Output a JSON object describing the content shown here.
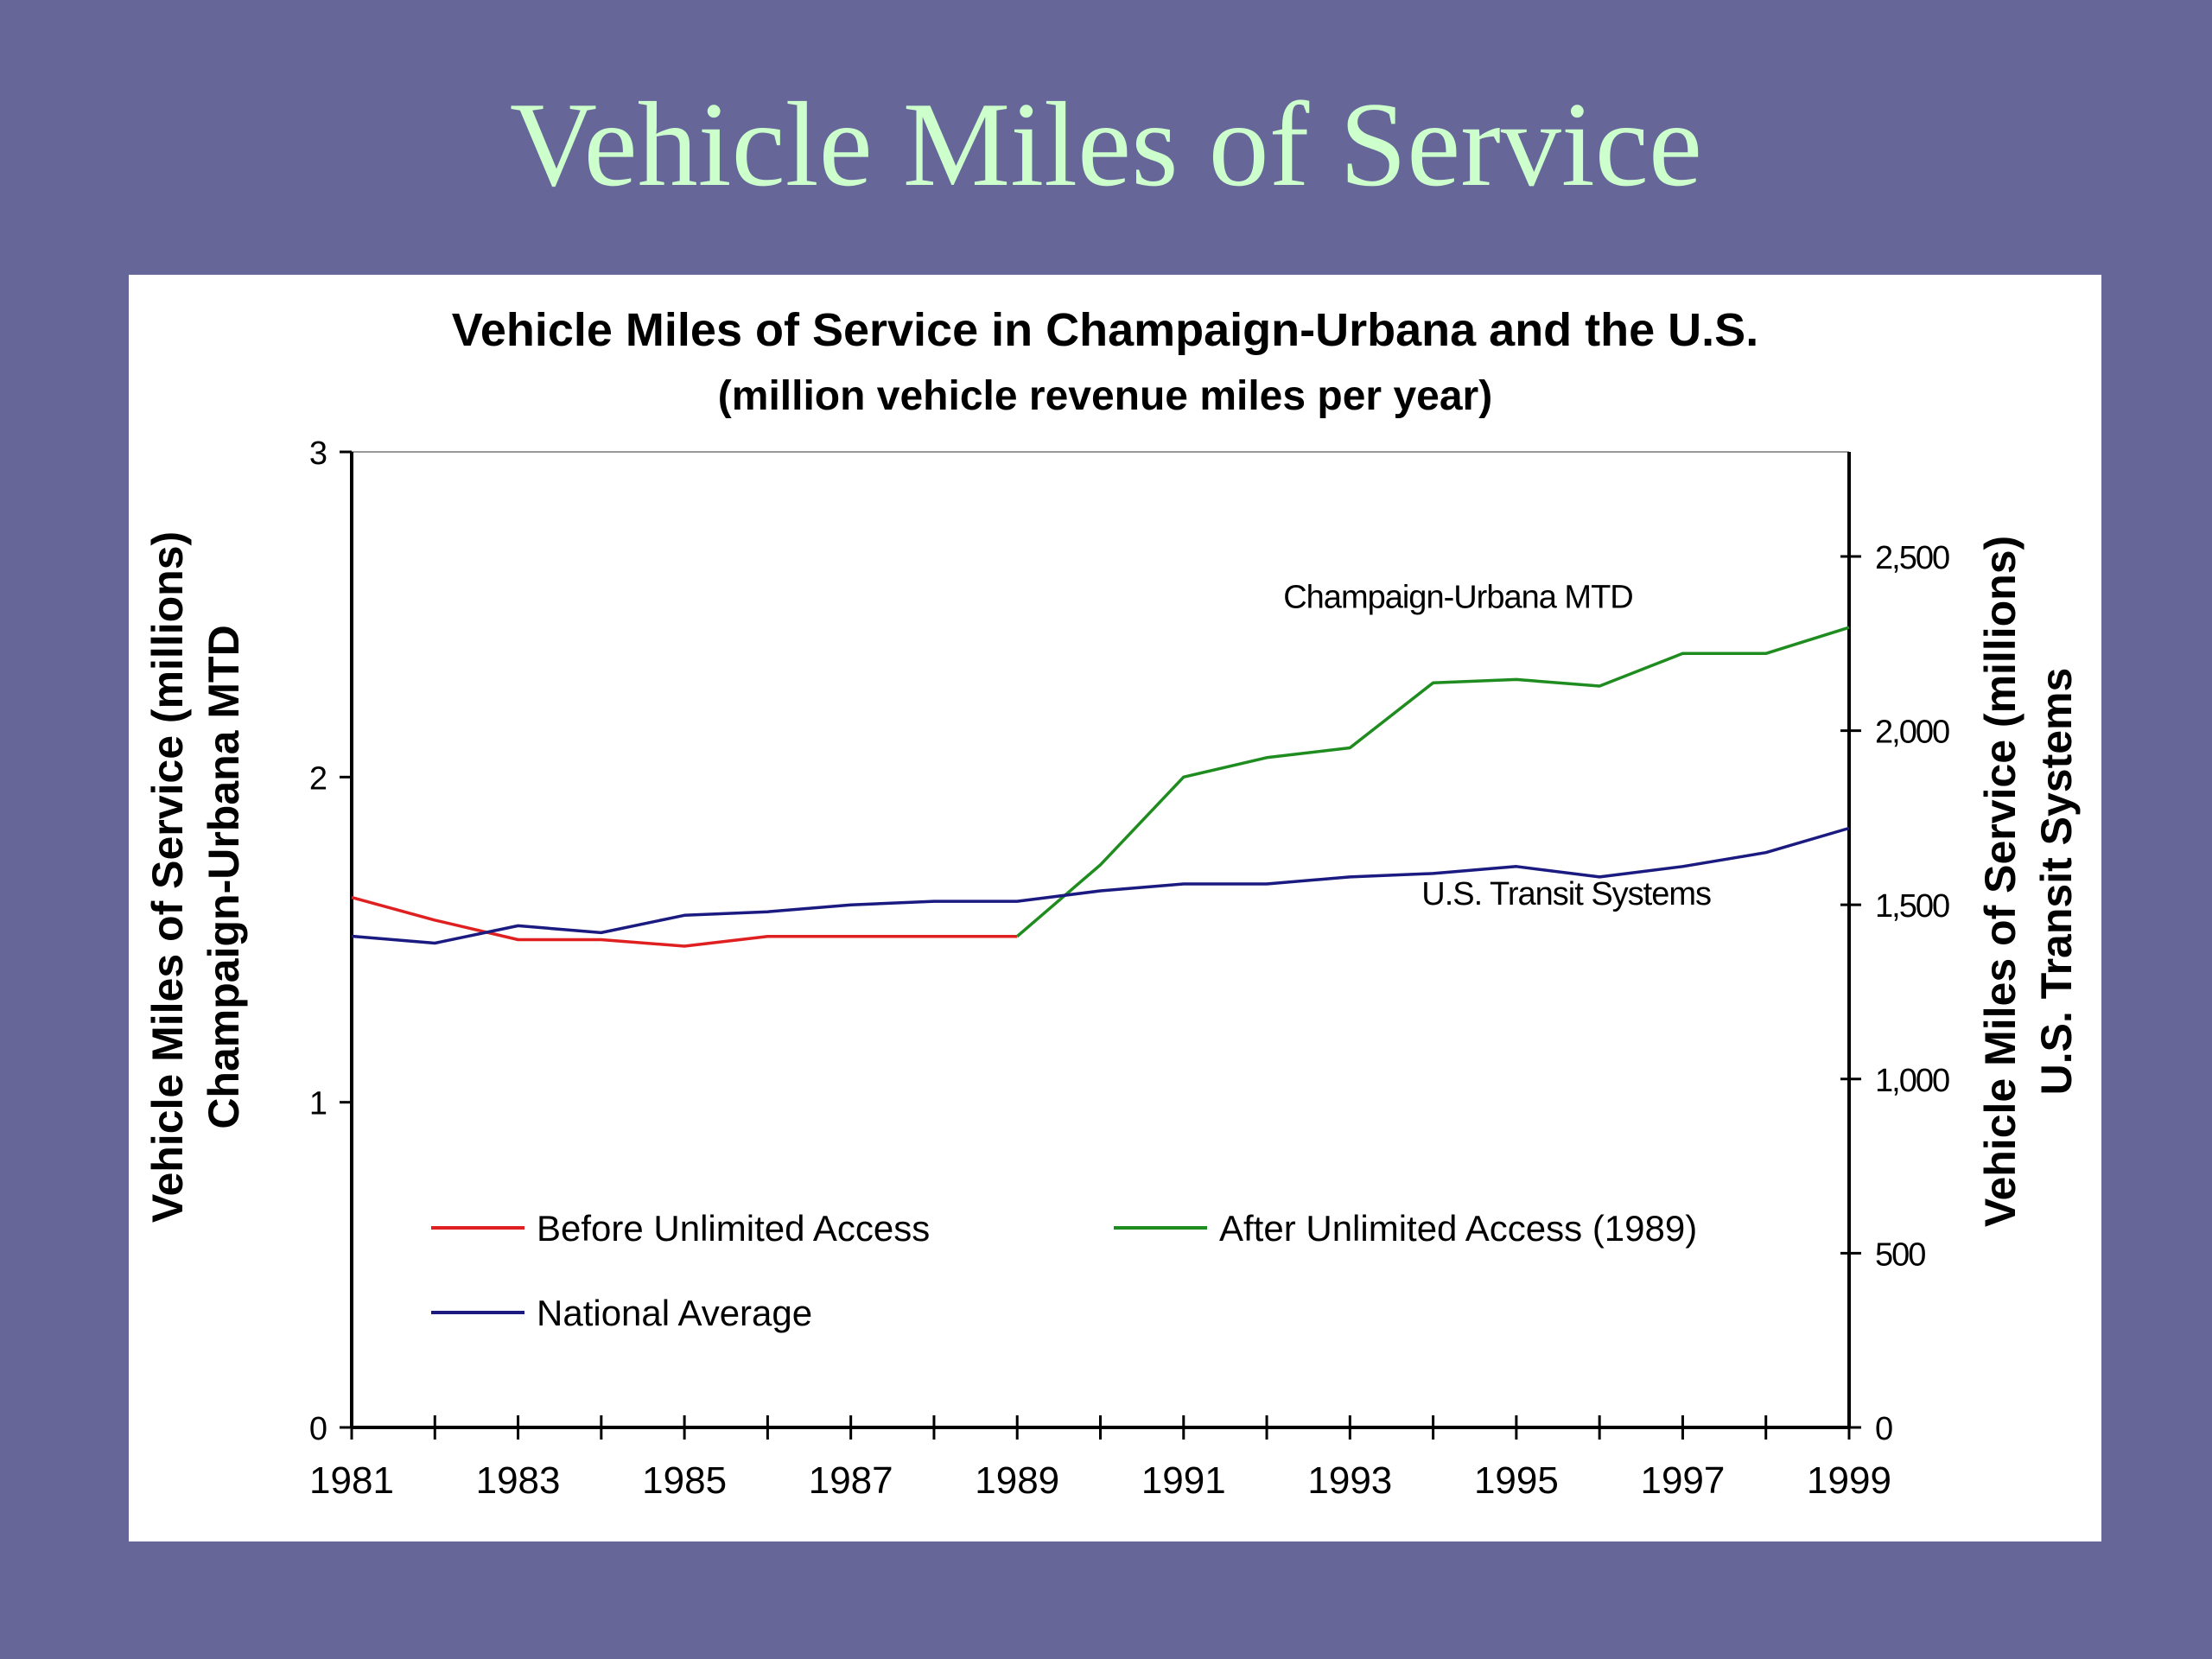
{
  "slide": {
    "title": "Vehicle Miles of Service"
  },
  "chart_data": {
    "type": "line",
    "title": "Vehicle Miles of Service in Champaign-Urbana and the U.S.",
    "subtitle": "(million vehicle revenue miles per year)",
    "x": [
      1981,
      1982,
      1983,
      1984,
      1985,
      1986,
      1987,
      1988,
      1989,
      1990,
      1991,
      1992,
      1993,
      1994,
      1995,
      1996,
      1997,
      1998,
      1999
    ],
    "xticks": [
      1981,
      1983,
      1985,
      1987,
      1989,
      1991,
      1993,
      1995,
      1997,
      1999
    ],
    "xticks_labels": [
      "1981",
      "1983",
      "1985",
      "1987",
      "1989",
      "1991",
      "1993",
      "1995",
      "1997",
      "1999"
    ],
    "xlim": [
      1981,
      1999
    ],
    "left_axis": {
      "label_line1": "Vehicle Miles of Service (millions)",
      "label_line2": "Champaign-Urbana MTD",
      "ylim": [
        0,
        3
      ],
      "ticks": [
        0,
        1,
        2,
        3
      ],
      "tick_labels": [
        "0",
        "1",
        "2",
        "3"
      ]
    },
    "right_axis": {
      "label_line1": "Vehicle Miles of Service (millions)",
      "label_line2": "U.S. Transit Systems",
      "ylim": [
        0,
        2800
      ],
      "ticks": [
        0,
        500,
        1000,
        1500,
        2000,
        2500
      ],
      "tick_labels": [
        "0",
        "500",
        "1,000",
        "1,500",
        "2,000",
        "2,500"
      ]
    },
    "series": [
      {
        "name": "Before Unlimited Access",
        "color": "#e02020",
        "axis": "left",
        "x": [
          1981,
          1982,
          1983,
          1984,
          1985,
          1986,
          1987,
          1988,
          1989
        ],
        "values": [
          1.63,
          1.56,
          1.5,
          1.5,
          1.48,
          1.51,
          1.51,
          1.51,
          1.51
        ]
      },
      {
        "name": "After Unlimited Access (1989)",
        "color": "#1f8c1f",
        "axis": "left",
        "x": [
          1989,
          1990,
          1991,
          1992,
          1993,
          1994,
          1995,
          1996,
          1997,
          1998,
          1999
        ],
        "values": [
          1.51,
          1.73,
          2.0,
          2.06,
          2.09,
          2.29,
          2.3,
          2.28,
          2.38,
          2.38,
          2.46
        ]
      },
      {
        "name": "National Average",
        "color": "#1a1a80",
        "axis": "right",
        "x": [
          1981,
          1982,
          1983,
          1984,
          1985,
          1986,
          1987,
          1988,
          1989,
          1990,
          1991,
          1992,
          1993,
          1994,
          1995,
          1996,
          1997,
          1998,
          1999
        ],
        "values": [
          1410,
          1390,
          1440,
          1420,
          1470,
          1480,
          1500,
          1510,
          1510,
          1540,
          1560,
          1560,
          1580,
          1590,
          1610,
          1580,
          1610,
          1650,
          1720
        ]
      }
    ],
    "annotations": [
      {
        "text": "Champaign-Urbana MTD",
        "x": 1994.3,
        "y": 2.52,
        "axis": "left"
      },
      {
        "text": "U.S. Transit Systems",
        "x": 1995.6,
        "y": 1500,
        "axis": "right"
      }
    ],
    "legend_position": "bottom-left inside plot",
    "grid": false
  }
}
